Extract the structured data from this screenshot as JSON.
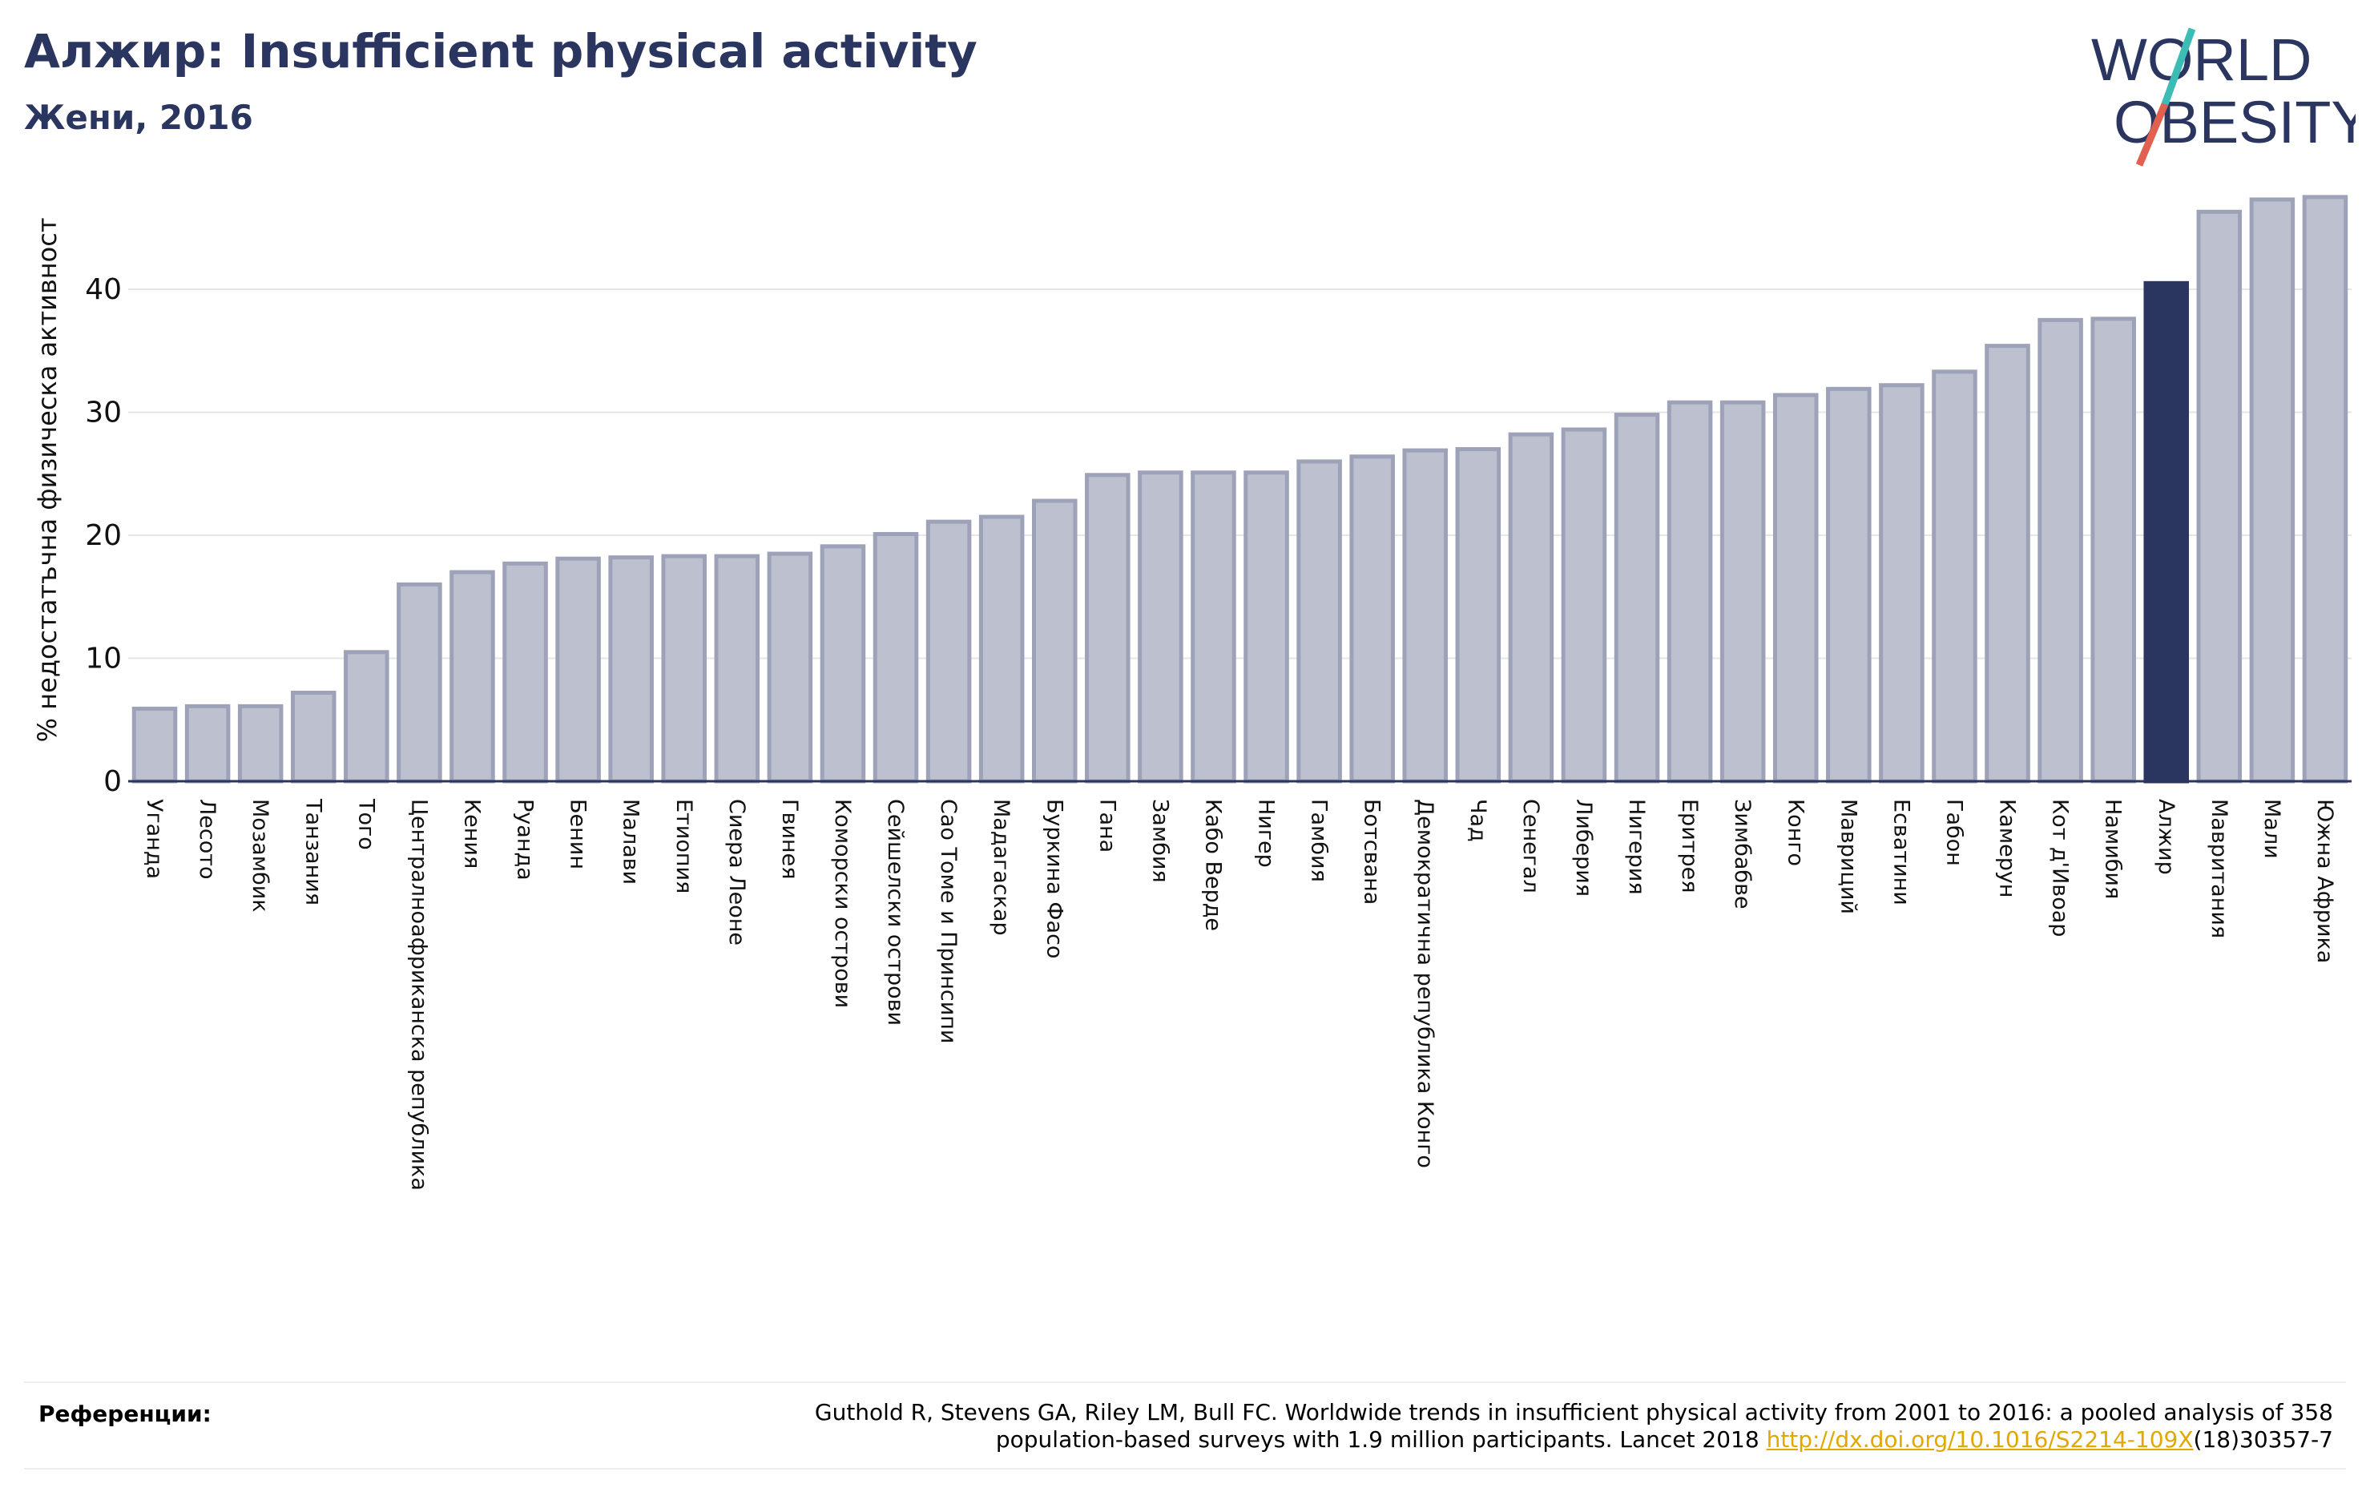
{
  "header": {
    "title": "Алжир: Insufficient physical activity",
    "subtitle": "Жени, 2016"
  },
  "logo": {
    "line1": "WORLD",
    "line2": "OBESITY"
  },
  "colors": {
    "title": "#2a3560",
    "bar_fill": "#bcc0cf",
    "bar_stroke": "#9da2b8",
    "highlight": "#2a3560",
    "grid": "#e6e6e6",
    "link": "#e0a800",
    "logo_teal": "#3bbcb5",
    "logo_red": "#e2604f"
  },
  "chart_data": {
    "type": "bar",
    "ylabel": "% недостатъчна физическа активност",
    "ylim": [
      0,
      48
    ],
    "yticks": [
      0,
      10,
      20,
      30,
      40
    ],
    "grid": true,
    "highlight_category": "Алжир",
    "categories": [
      "Уганда",
      "Лесото",
      "Мозамбик",
      "Танзания",
      "Того",
      "Централноафриканска република",
      "Кения",
      "Руанда",
      "Бенин",
      "Малави",
      "Етиопия",
      "Сиера Леоне",
      "Гвинея",
      "Коморски острови",
      "Сейшелски острови",
      "Сао Томе и Принсипи",
      "Мадагаскар",
      "Буркина Фасо",
      "Гана",
      "Замбия",
      "Кабо Верде",
      "Нигер",
      "Гамбия",
      "Ботсвана",
      "Демократична република Конго",
      "Чад",
      "Сенегал",
      "Либерия",
      "Нигерия",
      "Еритрея",
      "Зимбабве",
      "Конго",
      "Мавриций",
      "Есватини",
      "Габон",
      "Камерун",
      "Кот д'Ивоар",
      "Намибия",
      "Алжир",
      "Мавритания",
      "Мали",
      "Южна Африка"
    ],
    "values": [
      5.9,
      6.1,
      6.1,
      7.2,
      10.5,
      16.0,
      17.0,
      17.7,
      18.1,
      18.2,
      18.3,
      18.3,
      18.5,
      19.1,
      20.1,
      21.1,
      21.5,
      22.8,
      24.9,
      25.1,
      25.1,
      25.1,
      26.0,
      26.4,
      26.9,
      27.0,
      28.2,
      28.6,
      29.8,
      30.8,
      30.8,
      31.4,
      31.9,
      32.2,
      33.3,
      35.4,
      37.5,
      37.6,
      40.5,
      46.3,
      47.3,
      47.5
    ]
  },
  "references": {
    "label": "Референции:",
    "text_part1": "Guthold R, Stevens GA, Riley LM, Bull FC. Worldwide trends in insufficient physical activity from 2001 to 2016: a pooled analysis of 358",
    "text_part2": "population-based surveys with 1.9 million participants. Lancet 2018 ",
    "link_text": "http://dx.doi.org/10.1016/S2214-109X",
    "text_part3": "(18)30357-7"
  }
}
